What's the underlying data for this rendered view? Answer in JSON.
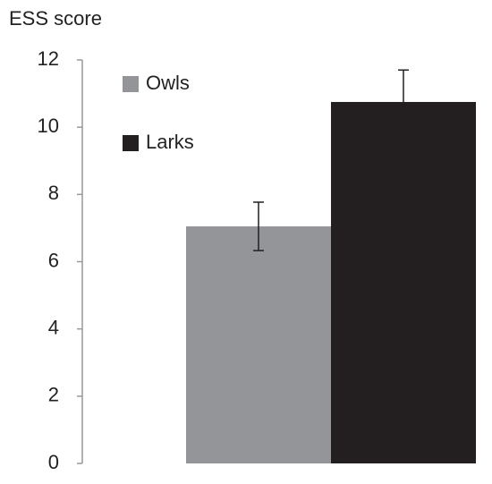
{
  "chart_data": {
    "type": "bar",
    "title": "ESS score",
    "categories": [
      null
    ],
    "series": [
      {
        "name": "Owls",
        "color": "#939598",
        "values": [
          7.05
        ],
        "errors": [
          0.72
        ]
      },
      {
        "name": "Larks",
        "color": "#231f20",
        "values": [
          10.75
        ],
        "errors": [
          0.95
        ]
      }
    ],
    "ylim": [
      0,
      12
    ],
    "yticks": [
      0,
      2,
      4,
      6,
      8,
      10,
      12
    ],
    "grid": false,
    "legend": "upper left"
  }
}
